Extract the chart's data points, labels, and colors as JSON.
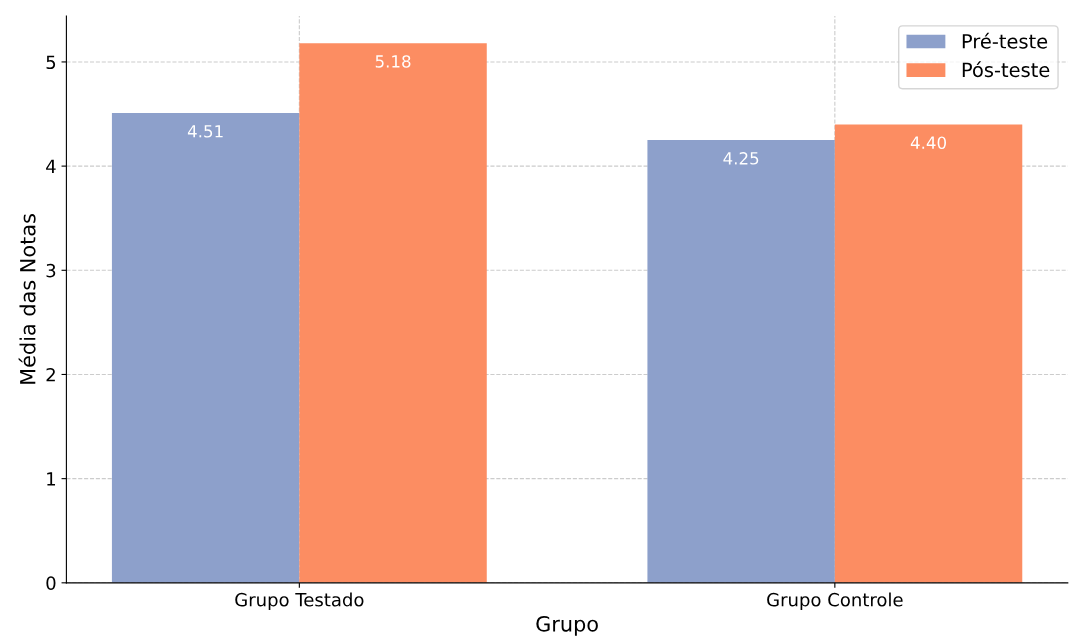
{
  "chart_data": {
    "type": "bar",
    "xlabel": "Grupo",
    "ylabel": "Média das Notas",
    "categories": [
      "Grupo Testado",
      "Grupo Controle"
    ],
    "series": [
      {
        "name": "Pré-teste",
        "color": "#8da0cb",
        "values": [
          4.51,
          4.25
        ],
        "value_labels": [
          "4.51",
          "4.25"
        ]
      },
      {
        "name": "Pós-teste",
        "color": "#fc8d62",
        "values": [
          5.18,
          4.4
        ],
        "value_labels": [
          "5.18",
          "4.40"
        ]
      }
    ],
    "ylim": [
      0,
      5.44
    ],
    "yticks": [
      0,
      1,
      2,
      3,
      4,
      5
    ],
    "grid": true,
    "legend": "top right"
  }
}
